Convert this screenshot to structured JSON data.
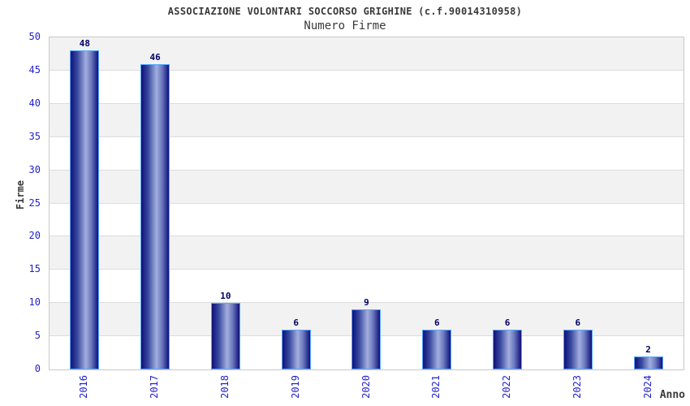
{
  "chart_data": {
    "type": "bar",
    "title": "ASSOCIAZIONE VOLONTARI SOCCORSO GRIGHINE (c.f.90014310958)",
    "subtitle": "Numero Firme",
    "xlabel": "Anno",
    "ylabel": "Firme",
    "categories": [
      "2016",
      "2017",
      "2018",
      "2019",
      "2020",
      "2021",
      "2022",
      "2023",
      "2024"
    ],
    "values": [
      48,
      46,
      10,
      6,
      9,
      6,
      6,
      6,
      2
    ],
    "ylim": [
      0,
      50
    ],
    "ytick_step": 5,
    "grid": true,
    "bands": "alternating-horizontal-gray",
    "legend": "none",
    "bar_value_labels_shown": true
  },
  "colors": {
    "background": "#ffffff",
    "text": "#3a3a3a",
    "tick_label": "#2222cc",
    "value_label": "#000066",
    "bar_border": "#55aaff",
    "bar_gradient_dark": "#10107a",
    "bar_gradient_light": "#a2aede",
    "band_fill": "#f2f2f2",
    "gridline": "#dcdcdc",
    "plot_border": "#c9c9c9"
  }
}
